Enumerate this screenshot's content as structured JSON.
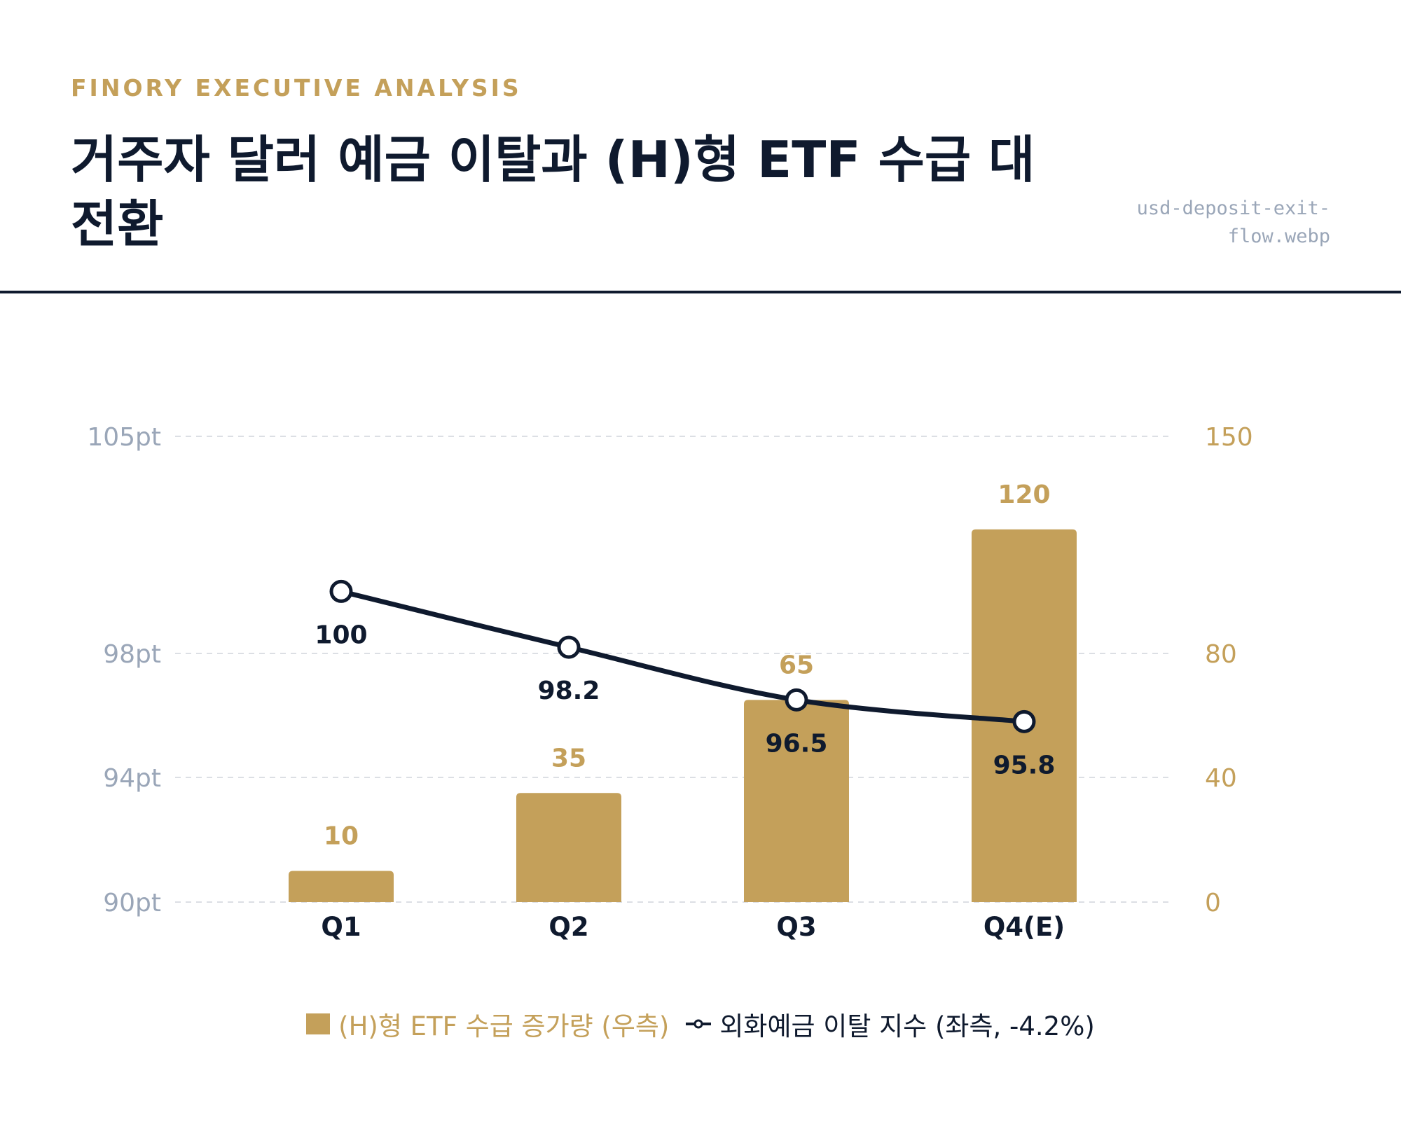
{
  "header": {
    "kicker": "FINORY EXECUTIVE ANALYSIS",
    "title": "거주자 달러 예금 이탈과 (H)형 ETF 수급 대전환",
    "filename": "usd-deposit-exit-flow.webp"
  },
  "colors": {
    "accent": "#c4a05a",
    "navy": "#0f1a2e",
    "left_axis_text": "#9aa6b8",
    "grid": "#dcdfe4"
  },
  "legend": {
    "bar_label": "(H)형 ETF 수급 증가량 (우측)",
    "line_label": "외화예금 이탈 지수 (좌측, -4.2%)"
  },
  "chart_data": {
    "type": "bar",
    "categories": [
      "Q1",
      "Q2",
      "Q3",
      "Q4(E)"
    ],
    "series": [
      {
        "name": "(H)형 ETF 수급 증가량 (우측)",
        "type": "bar",
        "axis": "right",
        "values": [
          10,
          35,
          65,
          120
        ],
        "labels": [
          "10",
          "35",
          "65",
          "120"
        ]
      },
      {
        "name": "외화예금 이탈 지수 (좌측, -4.2%)",
        "type": "line",
        "axis": "left",
        "values": [
          100,
          98.2,
          96.5,
          95.8
        ],
        "labels": [
          "100",
          "98.2",
          "96.5",
          "95.8"
        ]
      }
    ],
    "left_axis": {
      "ticks": [
        90,
        94,
        98,
        105
      ],
      "tick_labels": [
        "90pt",
        "94pt",
        "98pt",
        "105pt"
      ]
    },
    "right_axis": {
      "ticks": [
        0,
        40,
        80,
        150
      ],
      "tick_labels": [
        "0",
        "40",
        "80",
        "150"
      ],
      "ylim": [
        0,
        150
      ]
    },
    "grid": true,
    "legend_position": "bottom-center"
  }
}
